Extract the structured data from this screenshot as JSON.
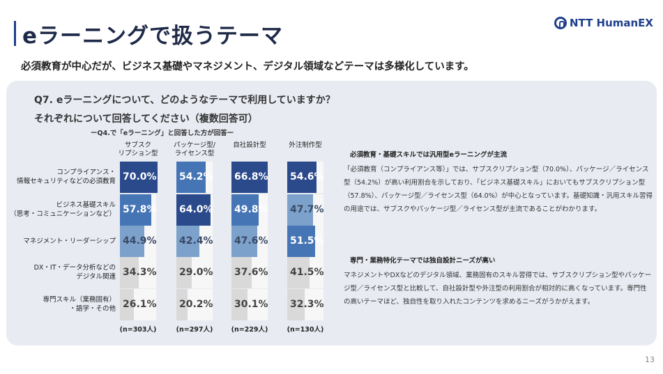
{
  "header": {
    "title": "eラーニングで扱うテーマ",
    "logo_text": "NTT HumanEX",
    "subtitle": "必須教育が中心だが、ビジネス基礎やマネジメント、デジタル領域などテーマは多様化しています。"
  },
  "question": {
    "line1": "Q7. eラーニングについて、どのようなテーマで利用していますか？",
    "line2": "それぞれについて回答してください（複数回答可）",
    "note": "ーQ4.で「eラーニング」と回答した方が回答ー"
  },
  "colors": {
    "tier1": "#2b4a8c",
    "tier2": "#4675b5",
    "tier3": "#7ca1cb",
    "tier4": "#d9d9d9",
    "accent": "#1f3f8c",
    "panel": "#e8ebf2"
  },
  "chart_data": {
    "type": "table",
    "columns": [
      {
        "label": "サブスク\nリプション型",
        "n": "(n=303人)"
      },
      {
        "label": "パッケージ型/\nライセンス型",
        "n": "(n=297人)"
      },
      {
        "label": "自社設計型",
        "n": "(n=229人)"
      },
      {
        "label": "外注制作型",
        "n": "(n=130人)"
      }
    ],
    "rows": [
      {
        "label": "コンプライアンス・\n情報セキュリティなどの必須教育",
        "values": [
          70.0,
          54.2,
          66.8,
          54.6
        ],
        "labels": [
          "70.0%",
          "54.2%",
          "66.8%",
          "54.6%"
        ],
        "tiers": [
          1,
          2,
          1,
          1
        ]
      },
      {
        "label": "ビジネス基礎スキル\n（思考・コミュニケーションなど）",
        "values": [
          57.8,
          64.0,
          49.8,
          47.7
        ],
        "labels": [
          "57.8%",
          "64.0%",
          "49.8%",
          "47.7%"
        ],
        "tiers": [
          2,
          1,
          2,
          3
        ]
      },
      {
        "label": "マネジメント・リーダーシップ",
        "values": [
          44.9,
          42.4,
          47.6,
          51.5
        ],
        "labels": [
          "44.9%",
          "42.4%",
          "47.6%",
          "51.5%"
        ],
        "tiers": [
          3,
          3,
          3,
          2
        ]
      },
      {
        "label": "DX・IT・データ分析などの\nデジタル関連",
        "values": [
          34.3,
          29.0,
          37.6,
          41.5
        ],
        "labels": [
          "34.3%",
          "29.0%",
          "37.6%",
          "41.5%"
        ],
        "tiers": [
          4,
          4,
          4,
          4
        ]
      },
      {
        "label": "専門スキル（業務固有）\n・語学・その他",
        "values": [
          26.1,
          20.2,
          30.1,
          32.3
        ],
        "labels": [
          "26.1%",
          "20.2%",
          "30.1%",
          "32.3%"
        ],
        "tiers": [
          4,
          4,
          4,
          4
        ]
      }
    ]
  },
  "commentary": {
    "heading1": "必須教育・基礎スキルでは汎用型eラーニングが主流",
    "body1": "「必須教育（コンプライアンス等）」では、サブスクリプション型（70.0%）、パッケージ／ライセンス型（54.2%）が高い利用割合を示しており、「ビジネス基礎スキル」においてもサブスクリプション型（57.8%）、パッケージ型／ライセンス型（64.0%）が中心となっています。基礎知識・汎用スキル習得の用途では、サブスクやパッケージ型／ライセンス型が主流であることがわかります。",
    "heading2": "専門・業務特化テーマでは独自設計ニーズが高い",
    "body2": "マネジメントやDXなどのデジタル領域、業務固有のスキル習得では、サブスクリプション型やパッケージ型／ライセンス型と比較して、自社設計型や外注型の利用割合が相対的に高くなっています。専門性の高いテーマほど、独自性を取り入れたコンテンツを求めるニーズがうかがえます。"
  },
  "footer": {
    "page_number": "13"
  }
}
